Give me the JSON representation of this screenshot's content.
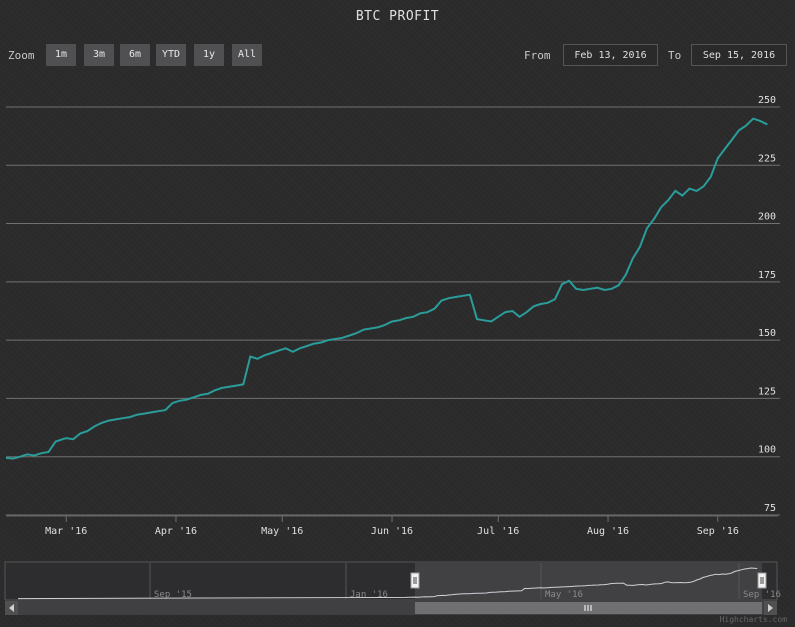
{
  "chart_data": {
    "type": "line",
    "title": "BTC PROFIT",
    "series": [
      {
        "x": [
          "2016-02-13",
          "2016-02-15",
          "2016-02-17",
          "2016-02-19",
          "2016-02-21",
          "2016-02-23",
          "2016-02-25",
          "2016-02-27",
          "2016-02-29",
          "2016-03-01",
          "2016-03-03",
          "2016-03-05",
          "2016-03-07",
          "2016-03-09",
          "2016-03-11",
          "2016-03-13",
          "2016-03-15",
          "2016-03-17",
          "2016-03-19",
          "2016-03-21",
          "2016-03-23",
          "2016-03-25",
          "2016-03-27",
          "2016-03-29",
          "2016-03-31",
          "2016-04-02",
          "2016-04-04",
          "2016-04-06",
          "2016-04-08",
          "2016-04-10",
          "2016-04-12",
          "2016-04-14",
          "2016-04-16",
          "2016-04-18",
          "2016-04-20",
          "2016-04-22",
          "2016-04-24",
          "2016-04-26",
          "2016-04-28",
          "2016-04-30",
          "2016-05-02",
          "2016-05-04",
          "2016-05-06",
          "2016-05-08",
          "2016-05-10",
          "2016-05-12",
          "2016-05-14",
          "2016-05-16",
          "2016-05-18",
          "2016-05-20",
          "2016-05-22",
          "2016-05-24",
          "2016-05-26",
          "2016-05-28",
          "2016-05-30",
          "2016-06-01",
          "2016-06-03",
          "2016-06-05",
          "2016-06-07",
          "2016-06-09",
          "2016-06-11",
          "2016-06-13",
          "2016-06-15",
          "2016-06-17",
          "2016-06-19",
          "2016-06-21",
          "2016-06-23",
          "2016-06-25",
          "2016-06-27",
          "2016-06-29",
          "2016-07-01",
          "2016-07-03",
          "2016-07-05",
          "2016-07-07",
          "2016-07-09",
          "2016-07-11",
          "2016-07-13",
          "2016-07-15",
          "2016-07-17",
          "2016-07-19",
          "2016-07-21",
          "2016-07-23",
          "2016-07-25",
          "2016-07-27",
          "2016-07-29",
          "2016-07-31",
          "2016-08-02",
          "2016-08-04",
          "2016-08-06",
          "2016-08-08",
          "2016-08-10",
          "2016-08-12",
          "2016-08-14",
          "2016-08-16",
          "2016-08-18",
          "2016-08-20",
          "2016-08-22",
          "2016-08-24",
          "2016-08-26",
          "2016-08-28",
          "2016-08-30",
          "2016-09-01",
          "2016-09-03",
          "2016-09-05",
          "2016-09-07",
          "2016-09-09",
          "2016-09-11",
          "2016-09-13",
          "2016-09-15"
        ],
        "values": [
          99.5,
          99.2,
          100,
          101,
          100.5,
          101.5,
          102,
          106.5,
          107.5,
          108,
          107.5,
          110,
          111,
          113,
          114.5,
          115.5,
          116,
          116.5,
          117,
          118,
          118.5,
          119,
          119.5,
          120,
          123,
          124,
          124.5,
          125.5,
          126.5,
          127,
          128.5,
          129.5,
          130,
          130.5,
          131,
          143,
          142,
          143.5,
          144.5,
          145.5,
          146.5,
          145,
          146.5,
          147.5,
          148.5,
          149,
          150,
          150.5,
          151,
          152,
          153,
          154.5,
          155,
          155.5,
          156.5,
          158,
          158.5,
          159.5,
          160,
          161.5,
          162,
          163.5,
          167,
          168,
          168.5,
          169,
          169.5,
          159,
          158.5,
          158,
          160,
          162,
          162.5,
          160,
          162,
          164.5,
          165.5,
          166,
          167.5,
          174,
          175.5,
          172,
          171.5,
          172,
          172.5,
          171.5,
          172,
          173.5,
          178,
          185,
          190,
          198,
          202,
          207,
          210,
          214,
          212,
          215,
          214,
          216,
          220,
          228,
          232,
          236,
          240,
          242,
          245,
          244,
          242.5
        ]
      }
    ],
    "x_ticks": [
      "Mar '16",
      "Apr '16",
      "May '16",
      "Jun '16",
      "Jul '16",
      "Aug '16",
      "Sep '16"
    ],
    "y_ticks": [
      "75",
      "100",
      "125",
      "150",
      "175",
      "200",
      "225",
      "250"
    ],
    "ylim": [
      75,
      262
    ],
    "grid": true,
    "line_color": "#2a9d9a",
    "navigator_ticks": [
      "Sep '15",
      "Jan '16",
      "May '16",
      "Sep '16"
    ]
  },
  "zoom": {
    "label": "Zoom",
    "buttons": [
      "1m",
      "3m",
      "6m",
      "YTD",
      "1y",
      "All"
    ]
  },
  "range": {
    "from_label": "From",
    "from_value": "Feb 13, 2016",
    "to_label": "To",
    "to_value": "Sep 15, 2016"
  },
  "credits": "Highcharts.com",
  "colors": {
    "background": "#2a2a2b",
    "grid": "#707073",
    "text": "#e0e0e3",
    "button": "#505053",
    "navigator_mask": "#5a5a5e"
  }
}
